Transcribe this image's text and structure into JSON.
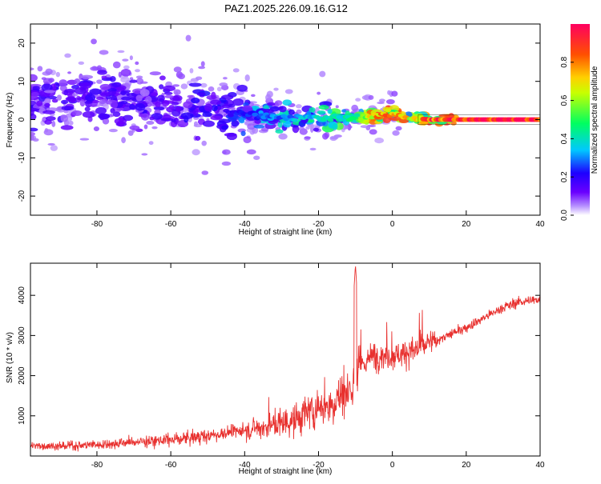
{
  "page_title": "PAZ1.2025.226.09.16.G12",
  "chart_data": [
    {
      "type": "heatmap",
      "xlabel": "Height of straight line (km)",
      "ylabel": "Frequency (Hz)",
      "xlim": [
        -98,
        40
      ],
      "ylim": [
        -25,
        25
      ],
      "x_ticks": [
        -80,
        -60,
        -40,
        -20,
        0,
        20,
        40
      ],
      "y_ticks": [
        -20,
        -10,
        0,
        10,
        20
      ],
      "colorbar": {
        "label": "Normalized spectral amplitude",
        "range": [
          0,
          1
        ],
        "ticks": [
          "0.0",
          "0.2",
          "0.4",
          "0.6",
          "0.8"
        ],
        "colormap": "rainbow (white-violet-blue-cyan-green-yellow-orange-red)"
      },
      "ridge": {
        "x": [
          -98,
          -80,
          -60,
          -45,
          -35,
          -25,
          -18,
          -10,
          -5,
          0,
          5,
          10,
          20,
          30,
          40
        ],
        "freq": [
          6,
          6,
          4,
          2,
          1,
          0.5,
          0.5,
          0.5,
          1,
          1.5,
          0.5,
          0,
          0,
          0,
          0
        ],
        "amplitude": [
          0.15,
          0.15,
          0.15,
          0.2,
          0.3,
          0.35,
          0.4,
          0.45,
          0.8,
          0.8,
          0.7,
          0.95,
          1,
          1,
          1
        ]
      },
      "grid": false
    },
    {
      "type": "line",
      "xlabel": "Height of straight line (km)",
      "ylabel": "SNR (10 * v/v)",
      "xlim": [
        -98,
        40
      ],
      "ylim": [
        0,
        4800
      ],
      "x_ticks": [
        -80,
        -60,
        -40,
        -20,
        0,
        20,
        40
      ],
      "y_ticks": [
        1000,
        2000,
        3000,
        4000
      ],
      "color": "#e8312f",
      "trend": {
        "x": [
          -98,
          -90,
          -80,
          -70,
          -60,
          -50,
          -40,
          -30,
          -25,
          -20,
          -15,
          -12,
          -10,
          -8,
          -5,
          0,
          5,
          10,
          15,
          20,
          25,
          30,
          35,
          40
        ],
        "y": [
          250,
          250,
          280,
          350,
          400,
          500,
          650,
          800,
          950,
          1200,
          1400,
          1600,
          1900,
          2300,
          2500,
          2500,
          2600,
          2800,
          3000,
          3200,
          3450,
          3700,
          3850,
          3900
        ]
      },
      "peak": {
        "x": -10,
        "y": 4750
      },
      "grid": false
    }
  ]
}
